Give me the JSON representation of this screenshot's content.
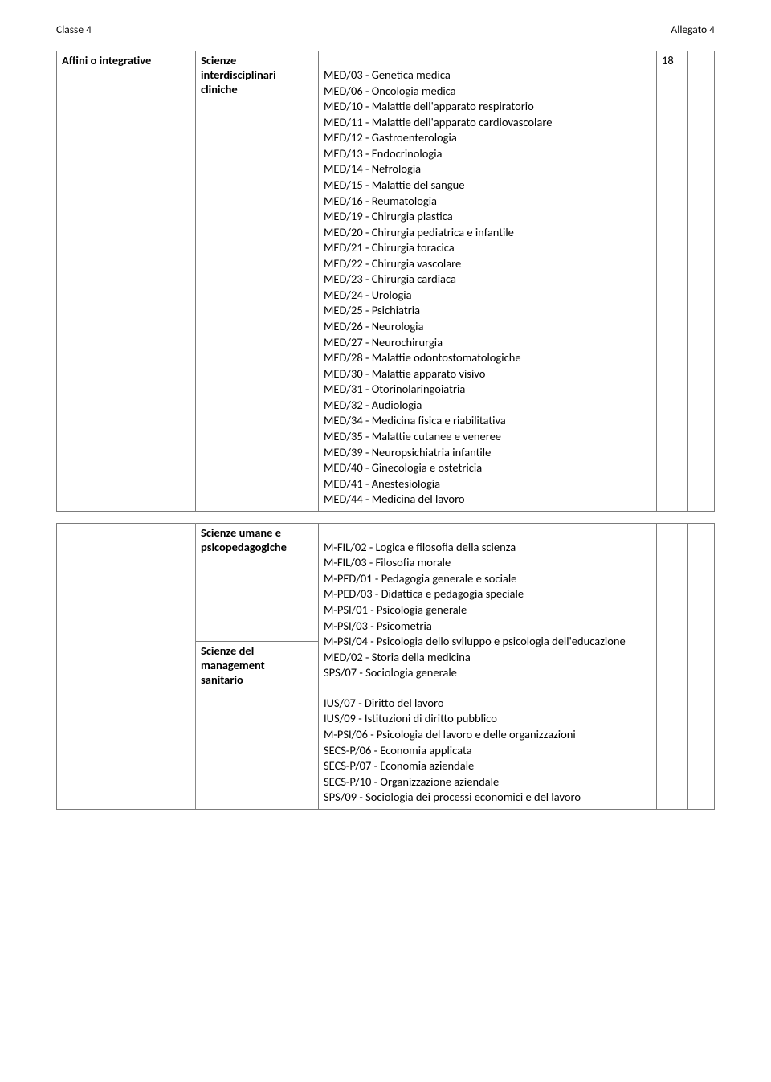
{
  "header": {
    "left": "Classe 4",
    "right": "Allegato 4"
  },
  "table1": {
    "col_a": "Affini o integrative",
    "col_b_line1": "Scienze",
    "col_b_line2": "interdisciplinari",
    "col_b_line3": "cliniche",
    "credits": "18",
    "items": [
      "MED/03 - Genetica medica",
      "MED/06 - Oncologia medica",
      "MED/10 - Malattie dell'apparato respiratorio",
      "MED/11 - Malattie dell'apparato cardiovascolare",
      "MED/12 - Gastroenterologia",
      "MED/13 - Endocrinologia",
      "MED/14 - Nefrologia",
      "MED/15 - Malattie del sangue",
      "MED/16 - Reumatologia",
      "MED/19 - Chirurgia plastica",
      "MED/20 - Chirurgia pediatrica e infantile",
      "MED/21 - Chirurgia toracica",
      "MED/22 - Chirurgia vascolare",
      "MED/23 - Chirurgia cardiaca",
      "MED/24 - Urologia",
      "MED/25 - Psichiatria",
      "MED/26 - Neurologia",
      "MED/27 - Neurochirurgia",
      "MED/28 - Malattie odontostomatologiche",
      "MED/30 - Malattie apparato visivo",
      "MED/31 - Otorinolaringoiatria",
      "MED/32 - Audiologia",
      "MED/34 - Medicina fisica e riabilitativa",
      "MED/35 - Malattie cutanee e veneree",
      "MED/39 - Neuropsichiatria infantile",
      "MED/40 - Ginecologia e ostetricia",
      "MED/41 - Anestesiologia",
      "MED/44 - Medicina del lavoro"
    ]
  },
  "table2": {
    "group1_label_line1": "Scienze umane e",
    "group1_label_line2": "psicopedagogiche",
    "group1_items": [
      "M-FIL/02 - Logica e filosofia della scienza",
      "M-FIL/03 - Filosofia morale",
      "M-PED/01 - Pedagogia generale e sociale",
      "M-PED/03 - Didattica e pedagogia speciale",
      "M-PSI/01 - Psicologia generale",
      "M-PSI/03 - Psicometria",
      "M-PSI/04 - Psicologia dello sviluppo e psicologia dell'educazione",
      "MED/02 - Storia della medicina",
      "SPS/07 - Sociologia generale"
    ],
    "group2_label_line1": "Scienze del",
    "group2_label_line2": "management",
    "group2_label_line3": "sanitario",
    "group2_items": [
      "IUS/07 - Diritto del lavoro",
      "IUS/09 - Istituzioni di diritto pubblico",
      "M-PSI/06 - Psicologia del lavoro e delle organizzazioni",
      "SECS-P/06 - Economia applicata",
      "SECS-P/07 - Economia aziendale",
      "SECS-P/10 - Organizzazione aziendale",
      "SPS/09 - Sociologia dei processi economici e del lavoro"
    ]
  }
}
